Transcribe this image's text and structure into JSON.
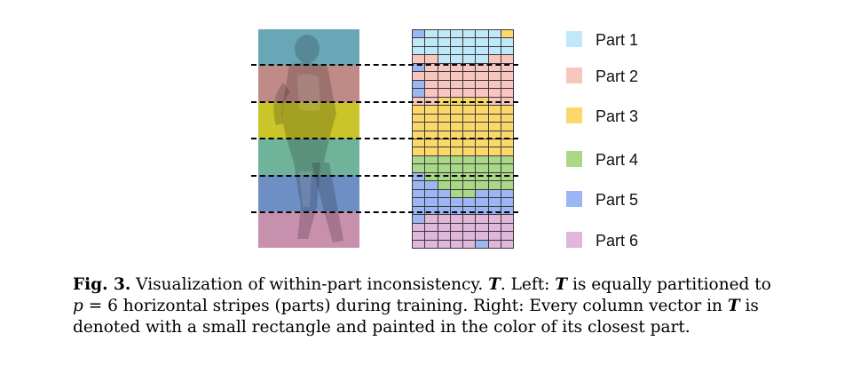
{
  "legend": [
    {
      "label": "Part 1",
      "color": "#bfe9f8"
    },
    {
      "label": "Part 2",
      "color": "#f8c6be"
    },
    {
      "label": "Part 3",
      "color": "#fbd86a"
    },
    {
      "label": "Part 4",
      "color": "#a9d987"
    },
    {
      "label": "Part 5",
      "color": "#9bb6f2"
    },
    {
      "label": "Part 6",
      "color": "#e0b6dc"
    }
  ],
  "stripe_colors": [
    "#6aa7b6",
    "#c08b86",
    "#c9c52a",
    "#6fb39a",
    "#6d8fc4",
    "#c790ad"
  ],
  "grid": {
    "columns": 8,
    "rows": 24,
    "assignment": [
      [
        5,
        1,
        1,
        1,
        1,
        1,
        1,
        3
      ],
      [
        1,
        1,
        1,
        1,
        1,
        1,
        1,
        1
      ],
      [
        1,
        1,
        1,
        1,
        1,
        1,
        1,
        1
      ],
      [
        2,
        2,
        1,
        1,
        1,
        1,
        2,
        2
      ],
      [
        5,
        2,
        2,
        2,
        2,
        2,
        2,
        2
      ],
      [
        2,
        2,
        2,
        2,
        2,
        2,
        2,
        2
      ],
      [
        5,
        2,
        2,
        2,
        2,
        2,
        2,
        2
      ],
      [
        5,
        2,
        2,
        2,
        2,
        2,
        2,
        2
      ],
      [
        2,
        2,
        3,
        3,
        3,
        3,
        2,
        2
      ],
      [
        3,
        3,
        3,
        3,
        3,
        3,
        3,
        3
      ],
      [
        3,
        3,
        3,
        3,
        3,
        3,
        3,
        3
      ],
      [
        3,
        3,
        3,
        3,
        3,
        3,
        3,
        3
      ],
      [
        3,
        3,
        3,
        3,
        3,
        3,
        3,
        3
      ],
      [
        3,
        3,
        3,
        3,
        3,
        3,
        3,
        3
      ],
      [
        3,
        3,
        3,
        3,
        3,
        3,
        3,
        3
      ],
      [
        4,
        4,
        4,
        4,
        4,
        4,
        4,
        4
      ],
      [
        4,
        4,
        4,
        4,
        4,
        4,
        4,
        4
      ],
      [
        5,
        4,
        4,
        4,
        4,
        4,
        4,
        4
      ],
      [
        5,
        5,
        4,
        4,
        4,
        4,
        4,
        4
      ],
      [
        5,
        5,
        5,
        4,
        4,
        5,
        5,
        5
      ],
      [
        5,
        5,
        5,
        5,
        5,
        5,
        5,
        5
      ],
      [
        5,
        5,
        5,
        5,
        5,
        5,
        5,
        5
      ],
      [
        5,
        6,
        6,
        6,
        6,
        6,
        6,
        6
      ],
      [
        6,
        6,
        6,
        6,
        6,
        6,
        6,
        6
      ]
    ],
    "extra_rows": [
      [
        6,
        6,
        6,
        6,
        6,
        6,
        6,
        6
      ],
      [
        6,
        6,
        6,
        6,
        6,
        5,
        6,
        6
      ]
    ]
  },
  "caption": {
    "label": "Fig. 3.",
    "s1": " Visualization of within-part inconsistency. ",
    "T": "T",
    "s2": ". Left: ",
    "s3": " is equally partitioned to",
    "p": "p",
    "s4": " = 6 horizontal stripes (parts) during training. Right: Every column vector in ",
    "s5": " is",
    "s6": "denoted with a small rectangle and painted in the color of its closest part."
  }
}
